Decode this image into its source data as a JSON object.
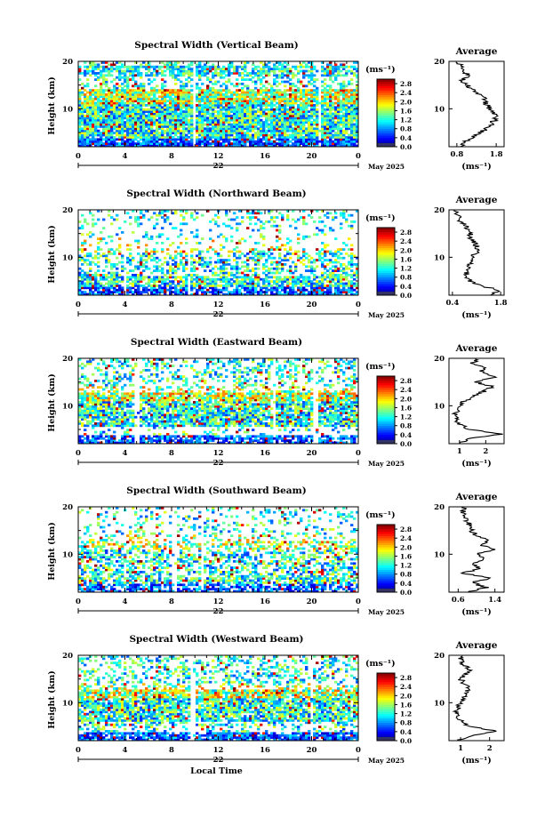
{
  "chart_data": [
    {
      "type": "heatmap",
      "title": "Spectral Width (Vertical Beam)",
      "ylabel": "Height (km)",
      "ylim": [
        2,
        20
      ],
      "yticks": [
        "10",
        "20"
      ],
      "xlim": [
        0,
        24
      ],
      "xticks": [
        "0",
        "4",
        "8",
        "12",
        "16",
        "20",
        "0"
      ],
      "day": "22",
      "date_label": "May 2025",
      "colorbar": {
        "unit": "(ms⁻¹)",
        "ticks": [
          "2.8",
          "2.4",
          "2.0",
          "1.6",
          "1.2",
          "0.8",
          "0.4",
          "0.0"
        ],
        "range": [
          0.0,
          3.0
        ]
      },
      "gap_hours": [
        9.9,
        20.7
      ],
      "profile": {
        "title": "Average",
        "xlabel": "(ms⁻¹)",
        "xticks": [
          "0.8",
          "1.8"
        ],
        "xrange": [
          0.6,
          2.0
        ],
        "yticks": [
          "10",
          "20"
        ],
        "height_km": [
          2,
          3,
          4,
          5,
          6,
          7,
          8,
          9,
          10,
          11,
          12,
          13,
          14,
          15,
          16,
          17,
          18,
          19,
          20
        ],
        "width_ms": [
          0.9,
          1.0,
          1.2,
          1.4,
          1.6,
          1.7,
          1.8,
          1.75,
          1.65,
          1.55,
          1.5,
          1.4,
          1.2,
          1.05,
          0.9,
          1.1,
          0.95,
          0.9,
          0.85
        ]
      }
    },
    {
      "type": "heatmap",
      "title": "Spectral Width (Northward Beam)",
      "ylabel": "Height (km)",
      "ylim": [
        2,
        20
      ],
      "yticks": [
        "10",
        "20"
      ],
      "xlim": [
        0,
        24
      ],
      "xticks": [
        "0",
        "4",
        "8",
        "12",
        "16",
        "20",
        "0"
      ],
      "day": "22",
      "date_label": "May 2025",
      "colorbar": {
        "unit": "(ms⁻¹)",
        "ticks": [
          "2.8",
          "2.4",
          "2.0",
          "1.6",
          "1.2",
          "0.8",
          "0.4",
          "0.0"
        ],
        "range": [
          0.0,
          3.0
        ]
      },
      "gap_hours": [
        4.0,
        9.5
      ],
      "profile": {
        "title": "Average",
        "xlabel": "(ms⁻¹)",
        "xticks": [
          "0.4",
          "1.8"
        ],
        "xrange": [
          0.3,
          1.9
        ],
        "yticks": [
          "10",
          "20"
        ],
        "height_km": [
          2,
          3,
          4,
          5,
          6,
          7,
          8,
          9,
          10,
          11,
          12,
          13,
          14,
          15,
          16,
          17,
          18,
          19,
          20
        ],
        "width_ms": [
          1.5,
          1.8,
          1.2,
          0.9,
          0.8,
          0.85,
          0.9,
          0.95,
          1.0,
          1.1,
          1.15,
          1.05,
          0.95,
          0.9,
          0.8,
          0.75,
          0.6,
          0.55,
          0.5
        ]
      }
    },
    {
      "type": "heatmap",
      "title": "Spectral Width (Eastward Beam)",
      "ylabel": "Height (km)",
      "ylim": [
        2,
        20
      ],
      "yticks": [
        "10",
        "20"
      ],
      "xlim": [
        0,
        24
      ],
      "xticks": [
        "0",
        "4",
        "8",
        "12",
        "16",
        "20",
        "0"
      ],
      "day": "22",
      "date_label": "May 2025",
      "colorbar": {
        "unit": "(ms⁻¹)",
        "ticks": [
          "2.8",
          "2.4",
          "2.0",
          "1.6",
          "1.2",
          "0.8",
          "0.4",
          "0.0"
        ],
        "range": [
          0.0,
          3.0
        ]
      },
      "gap_hours": [
        5.0,
        16.8,
        20.4
      ],
      "profile": {
        "title": "Average",
        "xlabel": "(ms⁻¹)",
        "xticks": [
          "1",
          "2"
        ],
        "xrange": [
          0.6,
          2.7
        ],
        "yticks": [
          "10",
          "20"
        ],
        "height_km": [
          2,
          3,
          4,
          5,
          6,
          7,
          8,
          9,
          10,
          11,
          12,
          13,
          14,
          15,
          16,
          17,
          18,
          19,
          20
        ],
        "width_ms": [
          1.0,
          1.3,
          2.6,
          1.4,
          1.0,
          0.9,
          0.85,
          0.9,
          1.0,
          1.2,
          1.5,
          1.9,
          2.3,
          1.6,
          2.4,
          1.8,
          2.0,
          1.5,
          1.7
        ]
      }
    },
    {
      "type": "heatmap",
      "title": "Spectral Width (Southward Beam)",
      "ylabel": "Height (km)",
      "ylim": [
        2,
        20
      ],
      "yticks": [
        "10",
        "20"
      ],
      "xlim": [
        0,
        24
      ],
      "xticks": [
        "0",
        "4",
        "8",
        "12",
        "16",
        "20",
        "0"
      ],
      "day": "22",
      "date_label": "May 2025",
      "colorbar": {
        "unit": "(ms⁻¹)",
        "ticks": [
          "2.8",
          "2.4",
          "2.0",
          "1.6",
          "1.2",
          "0.8",
          "0.4",
          "0.0"
        ],
        "range": [
          0.0,
          3.0
        ]
      },
      "gap_hours": [
        8.2,
        10.6
      ],
      "profile": {
        "title": "Average",
        "xlabel": "(ms⁻¹)",
        "xticks": [
          "0.6",
          "1.4"
        ],
        "xrange": [
          0.4,
          1.6
        ],
        "yticks": [
          "10",
          "20"
        ],
        "height_km": [
          2,
          3,
          4,
          5,
          6,
          7,
          8,
          9,
          10,
          11,
          12,
          13,
          14,
          15,
          16,
          17,
          18,
          19,
          20
        ],
        "width_ms": [
          0.8,
          1.2,
          0.9,
          1.3,
          0.7,
          1.1,
          0.9,
          1.2,
          1.0,
          1.4,
          1.1,
          1.3,
          1.0,
          0.9,
          0.85,
          0.8,
          0.75,
          0.7,
          0.7
        ]
      }
    },
    {
      "type": "heatmap",
      "title": "Spectral Width (Westward Beam)",
      "ylabel": "Height (km)",
      "ylim": [
        2,
        20
      ],
      "yticks": [
        "10",
        "20"
      ],
      "xlim": [
        0,
        24
      ],
      "xticks": [
        "0",
        "4",
        "8",
        "12",
        "16",
        "20",
        "0"
      ],
      "day": "22",
      "date_label": "May 2025",
      "xlabel": "Local Time",
      "colorbar": {
        "unit": "(ms⁻¹)",
        "ticks": [
          "2.8",
          "2.4",
          "2.0",
          "1.6",
          "1.2",
          "0.8",
          "0.4",
          "0.0"
        ],
        "range": [
          0.0,
          3.0
        ]
      },
      "gap_hours": [
        9.8,
        20.0
      ],
      "profile": {
        "title": "Average",
        "xlabel": "(ms⁻¹)",
        "xticks": [
          "1",
          "2"
        ],
        "xrange": [
          0.6,
          2.5
        ],
        "yticks": [
          "10",
          "20"
        ],
        "height_km": [
          2,
          3,
          4,
          5,
          6,
          7,
          8,
          9,
          10,
          11,
          12,
          13,
          14,
          15,
          16,
          17,
          18,
          19,
          20
        ],
        "width_ms": [
          0.9,
          1.4,
          2.2,
          1.3,
          1.0,
          0.9,
          0.85,
          0.9,
          0.95,
          1.1,
          1.2,
          1.3,
          1.1,
          1.0,
          1.2,
          1.3,
          1.1,
          1.0,
          1.1
        ]
      }
    }
  ]
}
